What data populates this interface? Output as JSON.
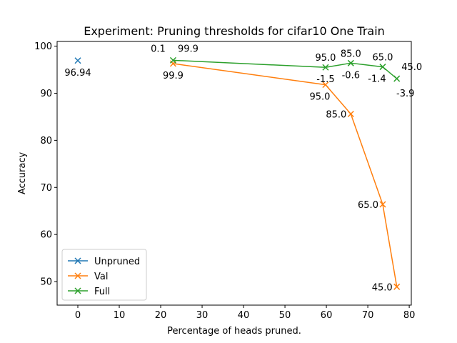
{
  "chart_data": {
    "type": "line",
    "title": "Experiment: Pruning thresholds for cifar10 One Train",
    "xlabel": "Percentage of heads pruned.",
    "ylabel": "Accuracy",
    "xlim": [
      -5,
      80.5
    ],
    "ylim": [
      45,
      101
    ],
    "xticks": [
      0,
      10,
      20,
      30,
      40,
      50,
      60,
      70,
      80
    ],
    "yticks": [
      50,
      60,
      70,
      80,
      90,
      100
    ],
    "grid": false,
    "legend_position": "lower-left",
    "series": [
      {
        "name": "Unpruned",
        "color": "#1f77b4",
        "marker": "x",
        "points": [
          {
            "x": 0,
            "y": 96.94
          }
        ],
        "labels": [
          {
            "text": "96.94",
            "x": 0,
            "y": 96.94,
            "pos": "below"
          }
        ]
      },
      {
        "name": "Val",
        "color": "#ff7f0e",
        "marker": "x",
        "points": [
          {
            "x": 23.0,
            "y": 96.3
          },
          {
            "x": 59.8,
            "y": 91.8
          },
          {
            "x": 65.9,
            "y": 85.6
          },
          {
            "x": 73.6,
            "y": 66.4
          },
          {
            "x": 77.0,
            "y": 48.9
          }
        ],
        "labels": [
          {
            "text": "99.9",
            "x": 23.0,
            "y": 96.3,
            "pos": "below"
          },
          {
            "text": "95.0",
            "x": 59.8,
            "y": 91.8,
            "pos": "below-left"
          },
          {
            "text": "85.0",
            "x": 65.9,
            "y": 85.6,
            "pos": "left"
          },
          {
            "text": "65.0",
            "x": 73.6,
            "y": 66.4,
            "pos": "left"
          },
          {
            "text": "45.0",
            "x": 77.0,
            "y": 48.9,
            "pos": "left"
          }
        ]
      },
      {
        "name": "Full",
        "color": "#2ca02c",
        "marker": "x",
        "points": [
          {
            "x": 23.0,
            "y": 97.0
          },
          {
            "x": 59.8,
            "y": 95.5
          },
          {
            "x": 65.9,
            "y": 96.4
          },
          {
            "x": 73.6,
            "y": 95.6
          },
          {
            "x": 77.0,
            "y": 93.1
          }
        ],
        "labels": [
          {
            "text": "0.1",
            "x": 23.0,
            "y": 97.0,
            "pos": "above-left"
          },
          {
            "text": "99.9",
            "x": 23.0,
            "y": 97.0,
            "pos": "above-right"
          },
          {
            "text": "95.0",
            "x": 59.8,
            "y": 95.5,
            "pos": "above"
          },
          {
            "text": "-1.5",
            "x": 59.8,
            "y": 95.5,
            "pos": "below"
          },
          {
            "text": "85.0",
            "x": 65.9,
            "y": 96.4,
            "pos": "above"
          },
          {
            "text": "-0.6",
            "x": 65.9,
            "y": 96.4,
            "pos": "below"
          },
          {
            "text": "65.0",
            "x": 73.6,
            "y": 95.6,
            "pos": "above"
          },
          {
            "text": "-1.4",
            "x": 73.6,
            "y": 95.6,
            "pos": "below-left"
          },
          {
            "text": "45.0",
            "x": 77.0,
            "y": 93.1,
            "pos": "above-right"
          },
          {
            "text": "-3.9",
            "x": 77.0,
            "y": 93.1,
            "pos": "below-right"
          }
        ]
      }
    ]
  }
}
